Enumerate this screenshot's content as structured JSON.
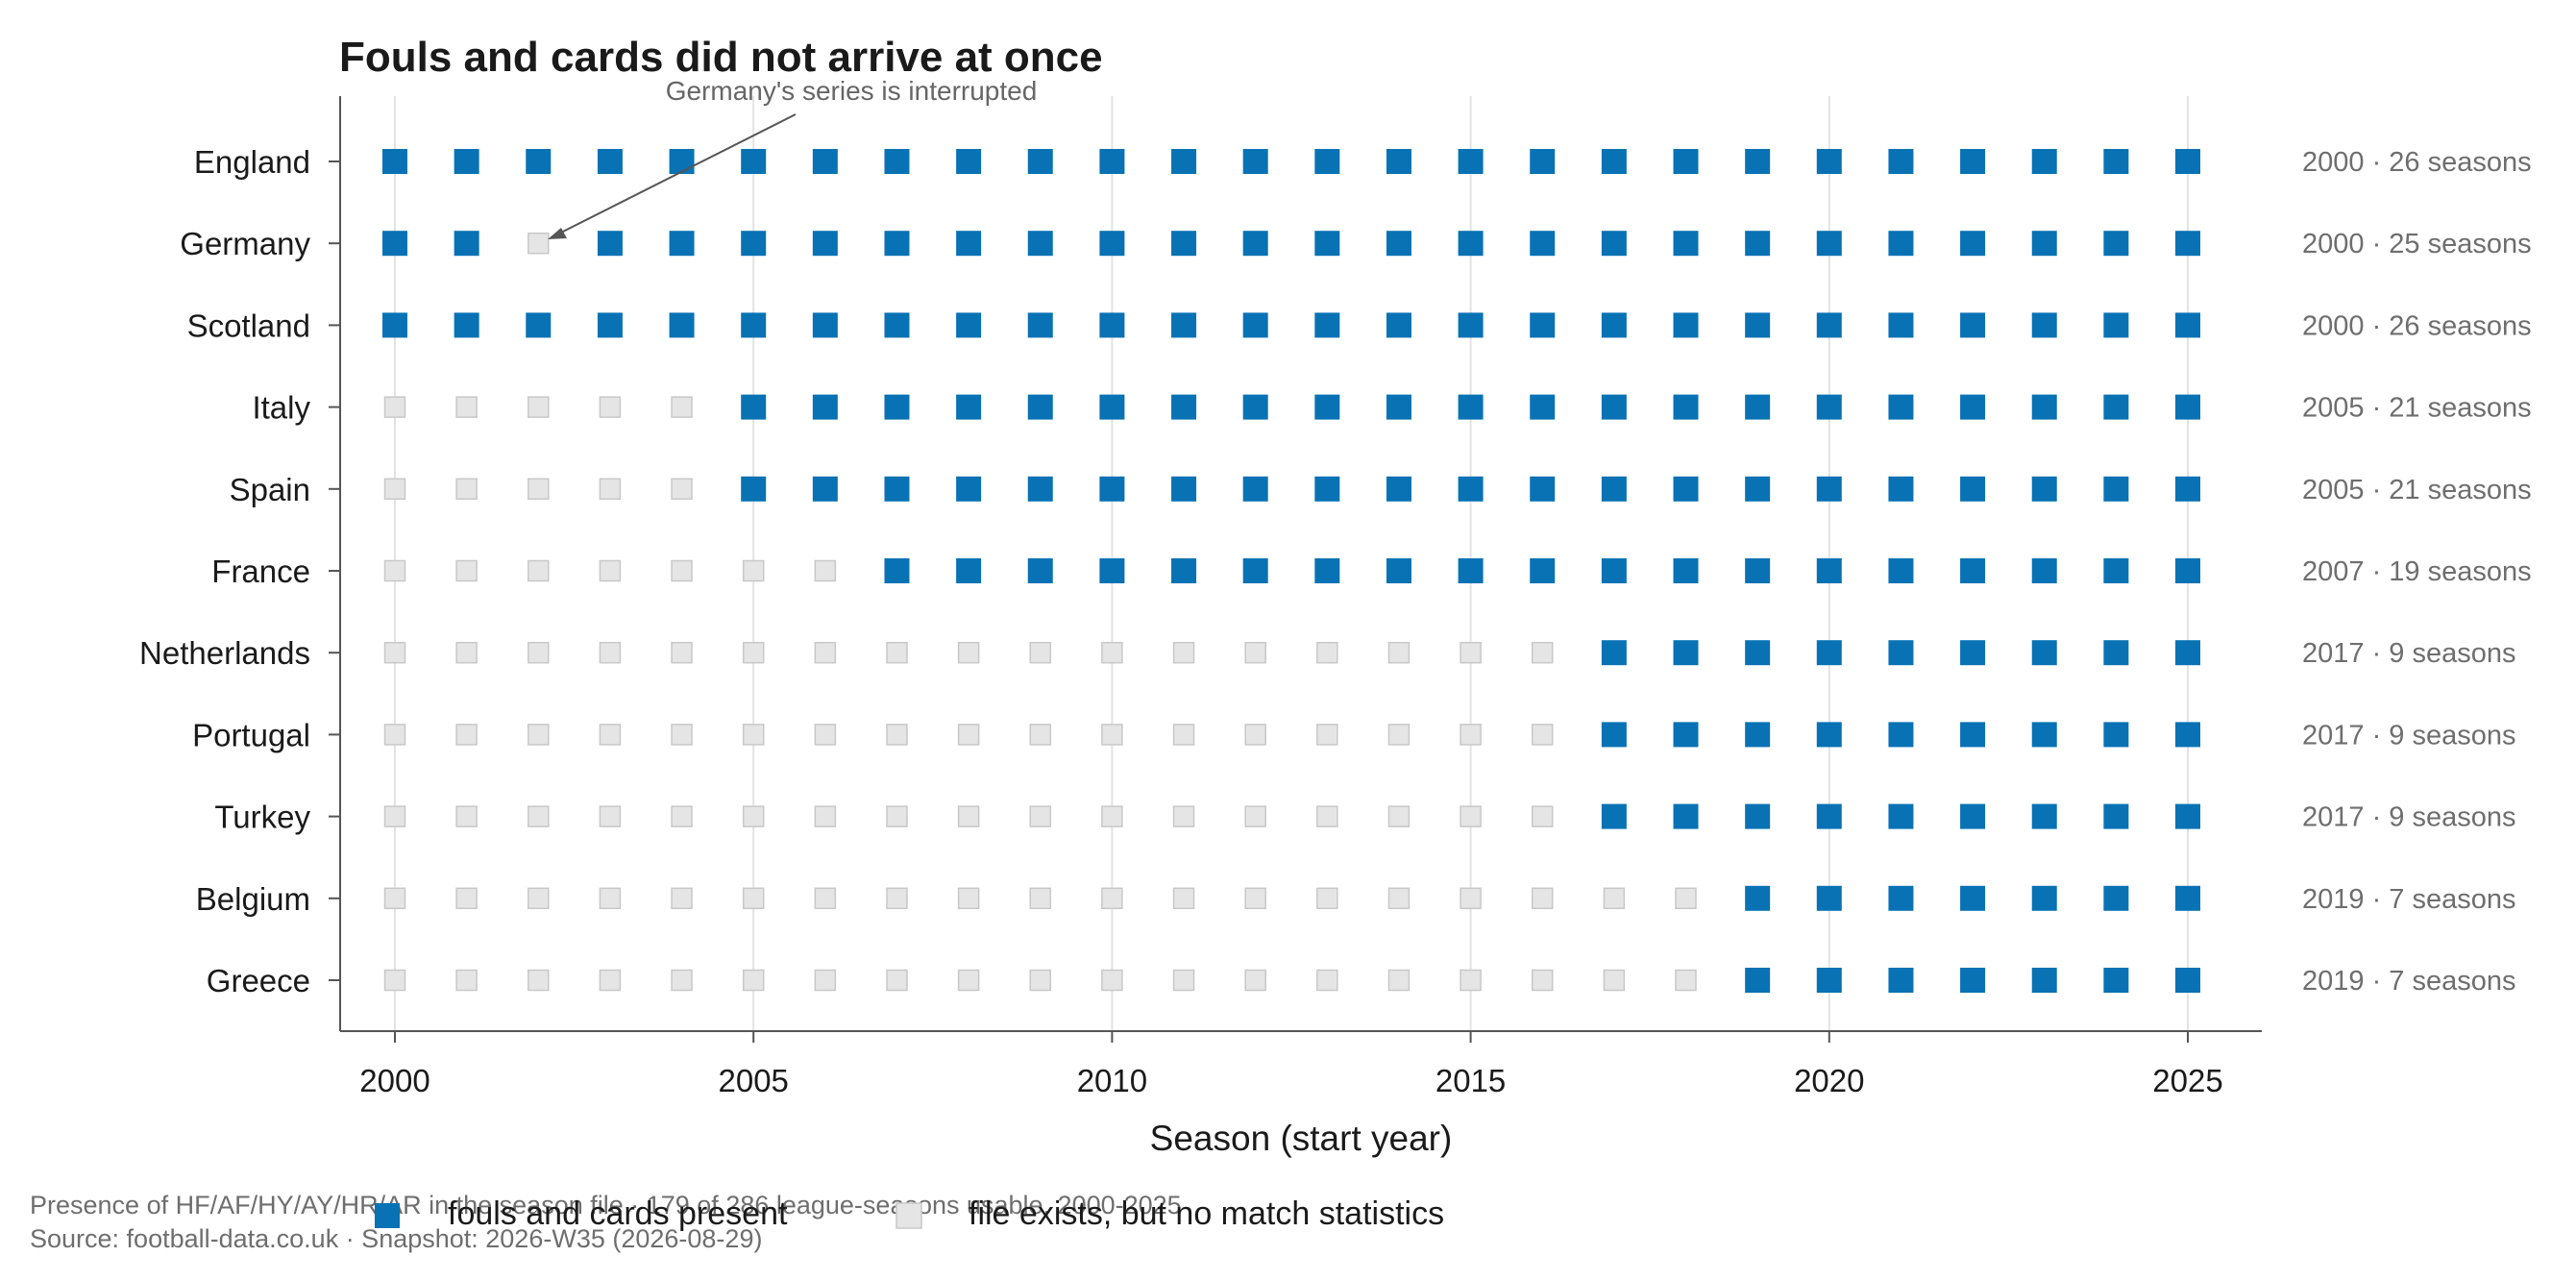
{
  "chart_data": {
    "type": "scatter",
    "title": "Fouls and cards did not arrive at once",
    "annotation": "Germany's series is interrupted",
    "xlabel": "Season (start year)",
    "xlim": [
      2000,
      2025
    ],
    "xticks": [
      2000,
      2005,
      2010,
      2015,
      2020,
      2025
    ],
    "grid": "vertical at major ticks",
    "legend_position": "bottom",
    "colors": {
      "present": "#0872b4",
      "absent": "#e5e5e5",
      "absent_edge": "#c8c8c8"
    },
    "legend": [
      {
        "key": "present",
        "label": "fouls and cards present"
      },
      {
        "key": "absent",
        "label": "file exists, but no match statistics"
      }
    ],
    "leagues": [
      {
        "name": "England",
        "summary": "2000 · 26 seasons",
        "present_from": 2000,
        "missing": []
      },
      {
        "name": "Germany",
        "summary": "2000 · 25 seasons",
        "present_from": 2000,
        "missing": [
          2002
        ]
      },
      {
        "name": "Scotland",
        "summary": "2000 · 26 seasons",
        "present_from": 2000,
        "missing": []
      },
      {
        "name": "Italy",
        "summary": "2005 · 21 seasons",
        "present_from": 2005,
        "missing": []
      },
      {
        "name": "Spain",
        "summary": "2005 · 21 seasons",
        "present_from": 2005,
        "missing": []
      },
      {
        "name": "France",
        "summary": "2007 · 19 seasons",
        "present_from": 2007,
        "missing": []
      },
      {
        "name": "Netherlands",
        "summary": "2017 · 9 seasons",
        "present_from": 2017,
        "missing": []
      },
      {
        "name": "Portugal",
        "summary": "2017 · 9 seasons",
        "present_from": 2017,
        "missing": []
      },
      {
        "name": "Turkey",
        "summary": "2017 · 9 seasons",
        "present_from": 2017,
        "missing": []
      },
      {
        "name": "Belgium",
        "summary": "2019 · 7 seasons",
        "present_from": 2019,
        "missing": []
      },
      {
        "name": "Greece",
        "summary": "2019 · 7 seasons",
        "present_from": 2019,
        "missing": []
      }
    ],
    "footer": [
      "Presence of HF/AF/HY/AY/HR/AR in the season file · 179 of 286 league-seasons usable, 2000-2025",
      "Source: football-data.co.uk · Snapshot: 2026-W35 (2026-08-29)"
    ]
  }
}
